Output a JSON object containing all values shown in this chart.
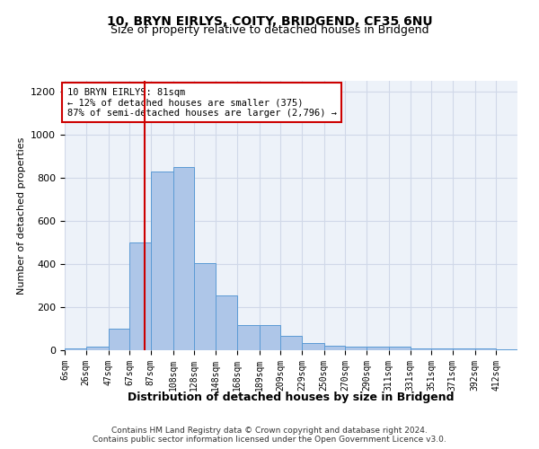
{
  "title1": "10, BRYN EIRLYS, COITY, BRIDGEND, CF35 6NU",
  "title2": "Size of property relative to detached houses in Bridgend",
  "xlabel": "Distribution of detached houses by size in Bridgend",
  "ylabel": "Number of detached properties",
  "footer1": "Contains HM Land Registry data © Crown copyright and database right 2024.",
  "footer2": "Contains public sector information licensed under the Open Government Licence v3.0.",
  "annotation_line1": "10 BRYN EIRLYS: 81sqm",
  "annotation_line2": "← 12% of detached houses are smaller (375)",
  "annotation_line3": "87% of semi-detached houses are larger (2,796) →",
  "bar_color": "#aec6e8",
  "bar_edge_color": "#5b9bd5",
  "vline_x": 81,
  "vline_color": "#cc0000",
  "categories": [
    "6sqm",
    "26sqm",
    "47sqm",
    "67sqm",
    "87sqm",
    "108sqm",
    "128sqm",
    "148sqm",
    "168sqm",
    "189sqm",
    "209sqm",
    "229sqm",
    "250sqm",
    "270sqm",
    "290sqm",
    "311sqm",
    "331sqm",
    "351sqm",
    "371sqm",
    "392sqm",
    "412sqm"
  ],
  "bin_edges": [
    6,
    26,
    47,
    67,
    87,
    108,
    128,
    148,
    168,
    189,
    209,
    229,
    250,
    270,
    290,
    311,
    331,
    351,
    371,
    392,
    412
  ],
  "values": [
    10,
    15,
    100,
    500,
    830,
    850,
    405,
    255,
    115,
    115,
    65,
    35,
    20,
    15,
    15,
    15,
    10,
    10,
    10,
    10,
    5
  ],
  "ylim": [
    0,
    1250
  ],
  "yticks": [
    0,
    200,
    400,
    600,
    800,
    1000,
    1200
  ],
  "annotation_box_color": "#ffffff",
  "annotation_box_edge_color": "#cc0000",
  "grid_color": "#d0d8e8",
  "bg_color": "#edf2f9"
}
